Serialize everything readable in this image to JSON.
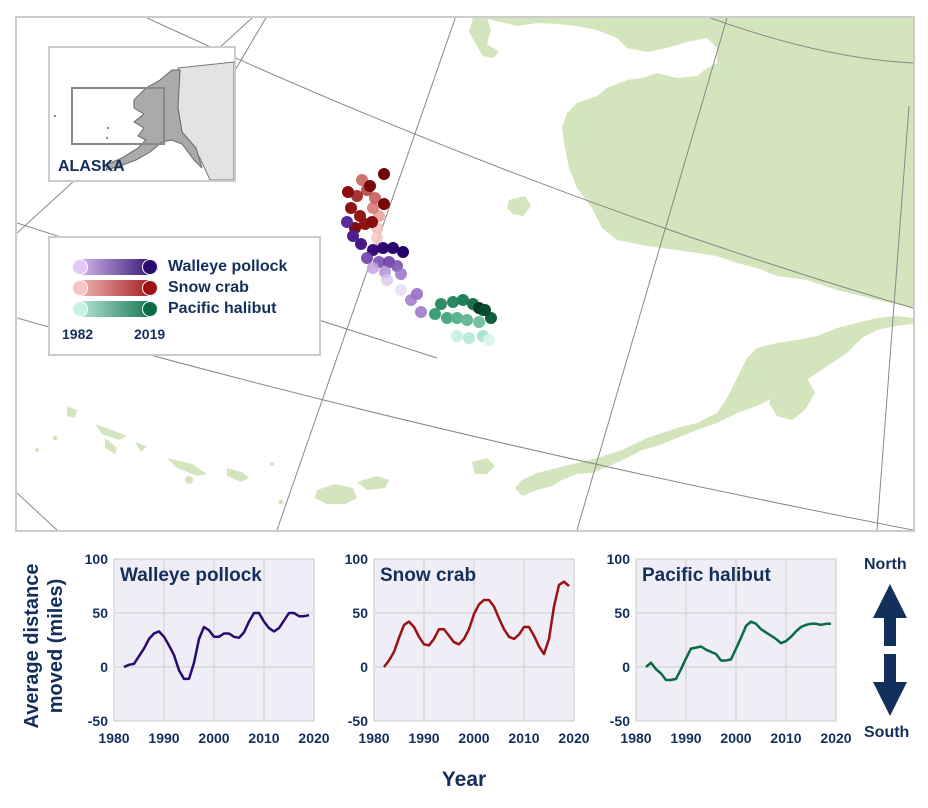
{
  "map": {
    "inset_label": "ALASKA",
    "land_color": "#d3e5bc",
    "gridline_color": "#888888",
    "frame_color": "#cccccc"
  },
  "legend": {
    "items": [
      {
        "label": "Walleye pollock",
        "color_start": "#e3c7f5",
        "color_end": "#2a0a6e"
      },
      {
        "label": "Snow crab",
        "color_start": "#f8c4c4",
        "color_end": "#9c1214"
      },
      {
        "label": "Pacific halibut",
        "color_start": "#c4f2e4",
        "color_end": "#0a6b45"
      }
    ],
    "year_start": "1982",
    "year_end": "2019"
  },
  "axes": {
    "y_title": "Average distance moved (miles)",
    "y_title_line1": "Average distance",
    "y_title_line2": "moved (miles)",
    "x_title": "Year",
    "y_ticks": [
      "100",
      "50",
      "0",
      "-50"
    ],
    "x_ticks": [
      "1980",
      "1990",
      "2000",
      "2010",
      "2020"
    ]
  },
  "direction": {
    "north_label": "North",
    "south_label": "South",
    "arrow_color": "#13305c"
  },
  "chart_data": [
    {
      "type": "line",
      "title": "Walleye pollock",
      "xlabel": "Year",
      "ylabel": "Average distance moved (miles)",
      "xlim": [
        1980,
        2020
      ],
      "ylim": [
        -50,
        100
      ],
      "grid": true,
      "color": "#2a0a6e",
      "x": [
        1982,
        1983,
        1984,
        1985,
        1986,
        1987,
        1988,
        1989,
        1990,
        1991,
        1992,
        1993,
        1994,
        1995,
        1996,
        1997,
        1998,
        1999,
        2000,
        2001,
        2002,
        2003,
        2004,
        2005,
        2006,
        2007,
        2008,
        2009,
        2010,
        2011,
        2012,
        2013,
        2014,
        2015,
        2016,
        2017,
        2018,
        2019
      ],
      "values": [
        0,
        2,
        3,
        10,
        17,
        26,
        31,
        33,
        28,
        20,
        11,
        -3,
        -11,
        -11,
        4,
        26,
        37,
        34,
        28,
        28,
        31,
        31,
        28,
        27,
        32,
        42,
        50,
        50,
        42,
        36,
        33,
        36,
        43,
        50,
        50,
        47,
        47,
        48
      ]
    },
    {
      "type": "line",
      "title": "Snow crab",
      "xlabel": "Year",
      "ylabel": "Average distance moved (miles)",
      "xlim": [
        1980,
        2020
      ],
      "ylim": [
        -50,
        100
      ],
      "grid": true,
      "color": "#9c1214",
      "x": [
        1982,
        1983,
        1984,
        1985,
        1986,
        1987,
        1988,
        1989,
        1990,
        1991,
        1992,
        1993,
        1994,
        1995,
        1996,
        1997,
        1998,
        1999,
        2000,
        2001,
        2002,
        2003,
        2004,
        2005,
        2006,
        2007,
        2008,
        2009,
        2010,
        2011,
        2012,
        2013,
        2014,
        2015,
        2016,
        2017,
        2018,
        2019
      ],
      "values": [
        0,
        6,
        14,
        27,
        39,
        42,
        37,
        28,
        21,
        20,
        26,
        35,
        35,
        29,
        23,
        21,
        26,
        35,
        49,
        58,
        62,
        62,
        56,
        45,
        35,
        28,
        26,
        30,
        37,
        37,
        29,
        19,
        12,
        26,
        56,
        76,
        79,
        75
      ]
    },
    {
      "type": "line",
      "title": "Pacific halibut",
      "xlabel": "Year",
      "ylabel": "Average distance moved (miles)",
      "xlim": [
        1980,
        2020
      ],
      "ylim": [
        -50,
        100
      ],
      "grid": true,
      "color": "#0a6b45",
      "x": [
        1982,
        1983,
        1984,
        1985,
        1986,
        1987,
        1988,
        1989,
        1990,
        1991,
        1992,
        1993,
        1994,
        1995,
        1996,
        1997,
        1998,
        1999,
        2000,
        2001,
        2002,
        2003,
        2004,
        2005,
        2006,
        2007,
        2008,
        2009,
        2010,
        2011,
        2012,
        2013,
        2014,
        2015,
        2016,
        2017,
        2018,
        2019
      ],
      "values": [
        0,
        4,
        -2,
        -6,
        -12,
        -12,
        -11,
        -2,
        8,
        17,
        18,
        19,
        16,
        14,
        12,
        6,
        6,
        7,
        17,
        27,
        38,
        42,
        40,
        35,
        32,
        29,
        26,
        22,
        24,
        28,
        33,
        37,
        39,
        40,
        40,
        39,
        40,
        40
      ]
    }
  ]
}
